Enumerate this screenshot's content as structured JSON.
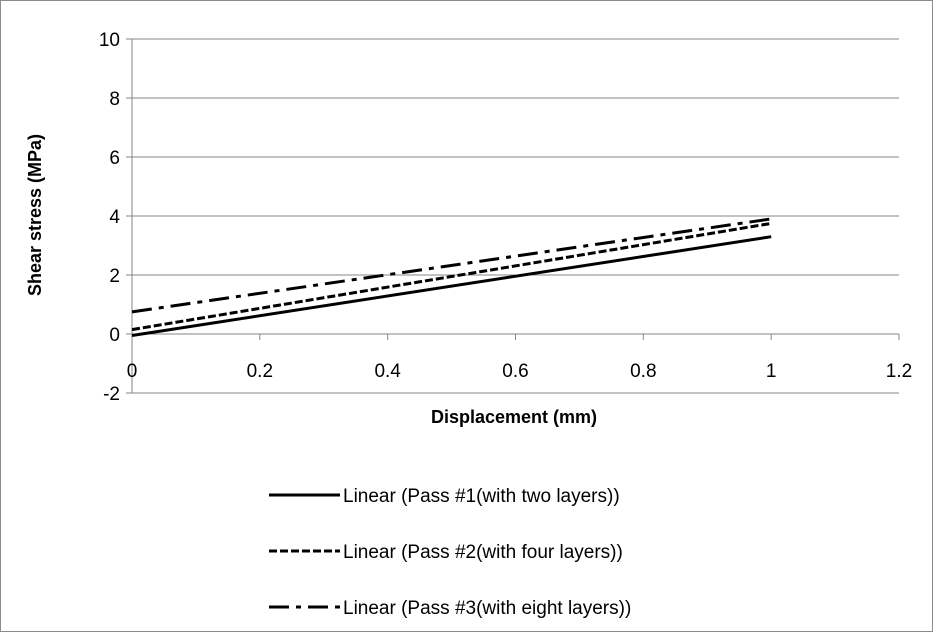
{
  "chart_data": {
    "type": "line",
    "title": "",
    "xlabel": "Displacement (mm)",
    "ylabel": "Shear stress (MPa)",
    "xlim": [
      0,
      1.2
    ],
    "ylim": [
      -2,
      10
    ],
    "x_ticks": [
      "0",
      "0.2",
      "0.4",
      "0.6",
      "0.8",
      "1",
      "1.2"
    ],
    "y_ticks": [
      "10",
      "8",
      "6",
      "4",
      "2",
      "0",
      "-2"
    ],
    "grid": "horizontal",
    "legend_position": "bottom",
    "series": [
      {
        "name": "Linear (Pass #1(with two layers))",
        "style": "solid",
        "x": [
          0,
          1
        ],
        "y": [
          -0.05,
          3.3
        ]
      },
      {
        "name": "Linear (Pass #2(with four layers))",
        "style": "dashed",
        "x": [
          0,
          1
        ],
        "y": [
          0.15,
          3.75
        ]
      },
      {
        "name": "Linear (Pass #3(with eight layers))",
        "style": "dash-dot",
        "x": [
          0,
          1
        ],
        "y": [
          0.75,
          3.9
        ]
      }
    ],
    "colors": {
      "line": "#000000",
      "grid": "#868686",
      "axis": "#868686"
    }
  }
}
